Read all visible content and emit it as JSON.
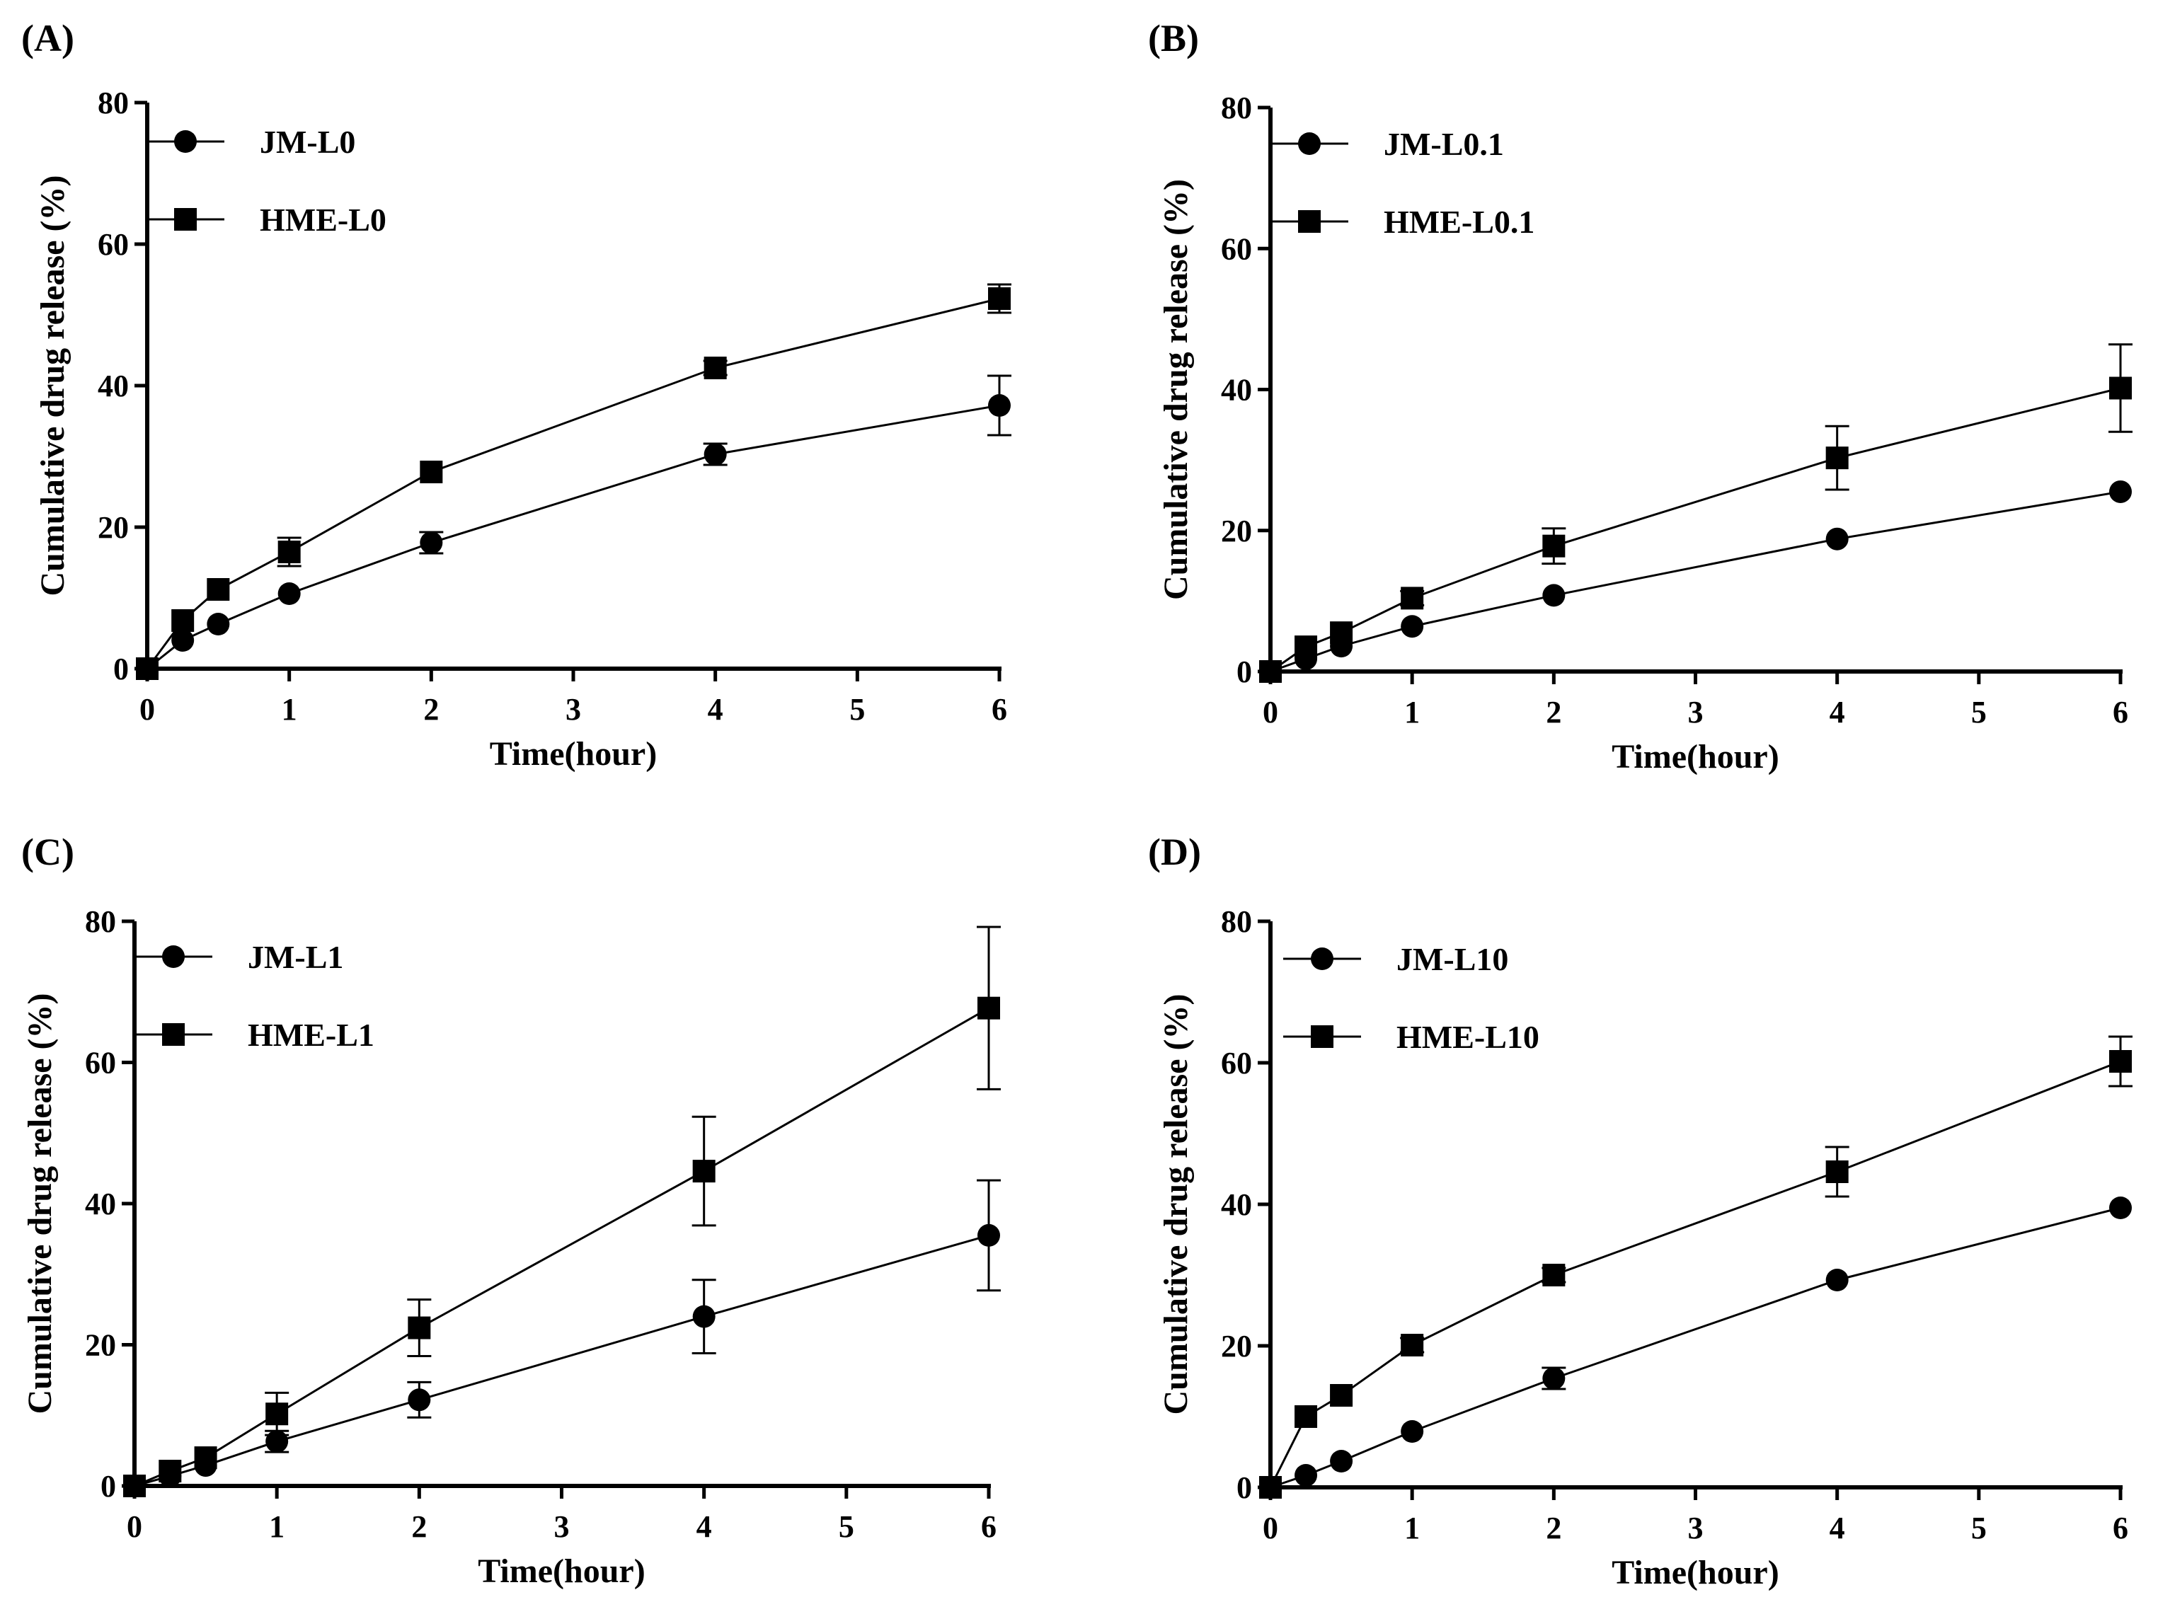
{
  "figure": {
    "colors": {
      "ink": "#000000",
      "background": "#ffffff"
    }
  },
  "chart_data": [
    {
      "panel_label": "(A)",
      "type": "line",
      "xlabel": "Time(hour)",
      "ylabel": "Cumulative drug release (%)",
      "xlim": [
        0,
        6
      ],
      "ylim": [
        0,
        80
      ],
      "xticks": [
        "0",
        "1",
        "2",
        "3",
        "4",
        "5",
        "6"
      ],
      "yticks": [
        "0",
        "20",
        "40",
        "60",
        "80"
      ],
      "grid": false,
      "legend_position": "top-left",
      "x": [
        0,
        0.25,
        0.5,
        1,
        2,
        4,
        6
      ],
      "series": [
        {
          "name": "JM-L0",
          "marker": "circle",
          "values": [
            0,
            4,
            6.3,
            10.6,
            17.8,
            30.3,
            37.2
          ],
          "errors": [
            0,
            0.5,
            0.6,
            0.8,
            1.5,
            1.5,
            4.2
          ]
        },
        {
          "name": "HME-L0",
          "marker": "square",
          "values": [
            0,
            6.8,
            11.2,
            16.5,
            27.8,
            42.5,
            52.3
          ],
          "errors": [
            0,
            0.8,
            0.8,
            2.0,
            0.8,
            1.0,
            2.0
          ]
        }
      ]
    },
    {
      "panel_label": "(B)",
      "type": "line",
      "xlabel": "Time(hour)",
      "ylabel": "Cumulative drug release (%)",
      "xlim": [
        0,
        6
      ],
      "ylim": [
        0,
        80
      ],
      "xticks": [
        "0",
        "1",
        "2",
        "3",
        "4",
        "5",
        "6"
      ],
      "yticks": [
        "0",
        "20",
        "40",
        "60",
        "80"
      ],
      "grid": false,
      "legend_position": "top-left",
      "x": [
        0,
        0.25,
        0.5,
        1,
        2,
        4,
        6
      ],
      "series": [
        {
          "name": "JM-L0.1",
          "marker": "circle",
          "values": [
            0,
            1.8,
            3.6,
            6.4,
            10.8,
            18.8,
            25.5
          ],
          "errors": [
            0,
            0.3,
            0.4,
            0.5,
            0.6,
            0.6,
            0.6
          ]
        },
        {
          "name": "HME-L0.1",
          "marker": "square",
          "values": [
            0,
            3.5,
            5.5,
            10.4,
            17.8,
            30.3,
            40.2
          ],
          "errors": [
            0,
            0.6,
            0.8,
            1.0,
            2.5,
            4.5,
            6.2
          ]
        }
      ]
    },
    {
      "panel_label": "(C)",
      "type": "line",
      "xlabel": "Time(hour)",
      "ylabel": "Cumulative drug release (%)",
      "xlim": [
        0,
        6
      ],
      "ylim": [
        0,
        80
      ],
      "xticks": [
        "0",
        "1",
        "2",
        "3",
        "4",
        "5",
        "6"
      ],
      "yticks": [
        "0",
        "20",
        "40",
        "60",
        "80"
      ],
      "grid": false,
      "legend_position": "top-left",
      "x": [
        0,
        0.25,
        0.5,
        1,
        2,
        4,
        6
      ],
      "series": [
        {
          "name": "JM-L1",
          "marker": "circle",
          "values": [
            0,
            1.4,
            2.9,
            6.3,
            12.2,
            24.0,
            35.5
          ],
          "errors": [
            0,
            0.3,
            0.5,
            1.5,
            2.5,
            5.2,
            7.8
          ]
        },
        {
          "name": "HME-L1",
          "marker": "square",
          "values": [
            0,
            2.1,
            4.0,
            10.2,
            22.4,
            44.6,
            67.7
          ],
          "errors": [
            0,
            0.5,
            0.8,
            3.0,
            4.0,
            7.7,
            11.5
          ]
        }
      ]
    },
    {
      "panel_label": "(D)",
      "type": "line",
      "xlabel": "Time(hour)",
      "ylabel": "Cumulative drug release (%)",
      "xlim": [
        0,
        6
      ],
      "ylim": [
        0,
        80
      ],
      "xticks": [
        "0",
        "1",
        "2",
        "3",
        "4",
        "5",
        "6"
      ],
      "yticks": [
        "0",
        "20",
        "40",
        "60",
        "80"
      ],
      "grid": false,
      "legend_position": "top-left",
      "x": [
        0,
        0.25,
        0.5,
        1,
        2,
        4,
        6
      ],
      "series": [
        {
          "name": "JM-L10",
          "marker": "circle",
          "values": [
            0,
            1.7,
            3.7,
            7.9,
            15.4,
            29.3,
            39.5
          ],
          "errors": [
            0,
            0.3,
            0.5,
            0.6,
            1.5,
            0.6,
            0.6
          ]
        },
        {
          "name": "HME-L10",
          "marker": "square",
          "values": [
            0,
            10.0,
            13.0,
            20.1,
            30.0,
            44.6,
            60.2
          ],
          "errors": [
            0,
            0.8,
            0.8,
            1.0,
            1.0,
            3.5,
            3.5
          ]
        }
      ]
    }
  ]
}
